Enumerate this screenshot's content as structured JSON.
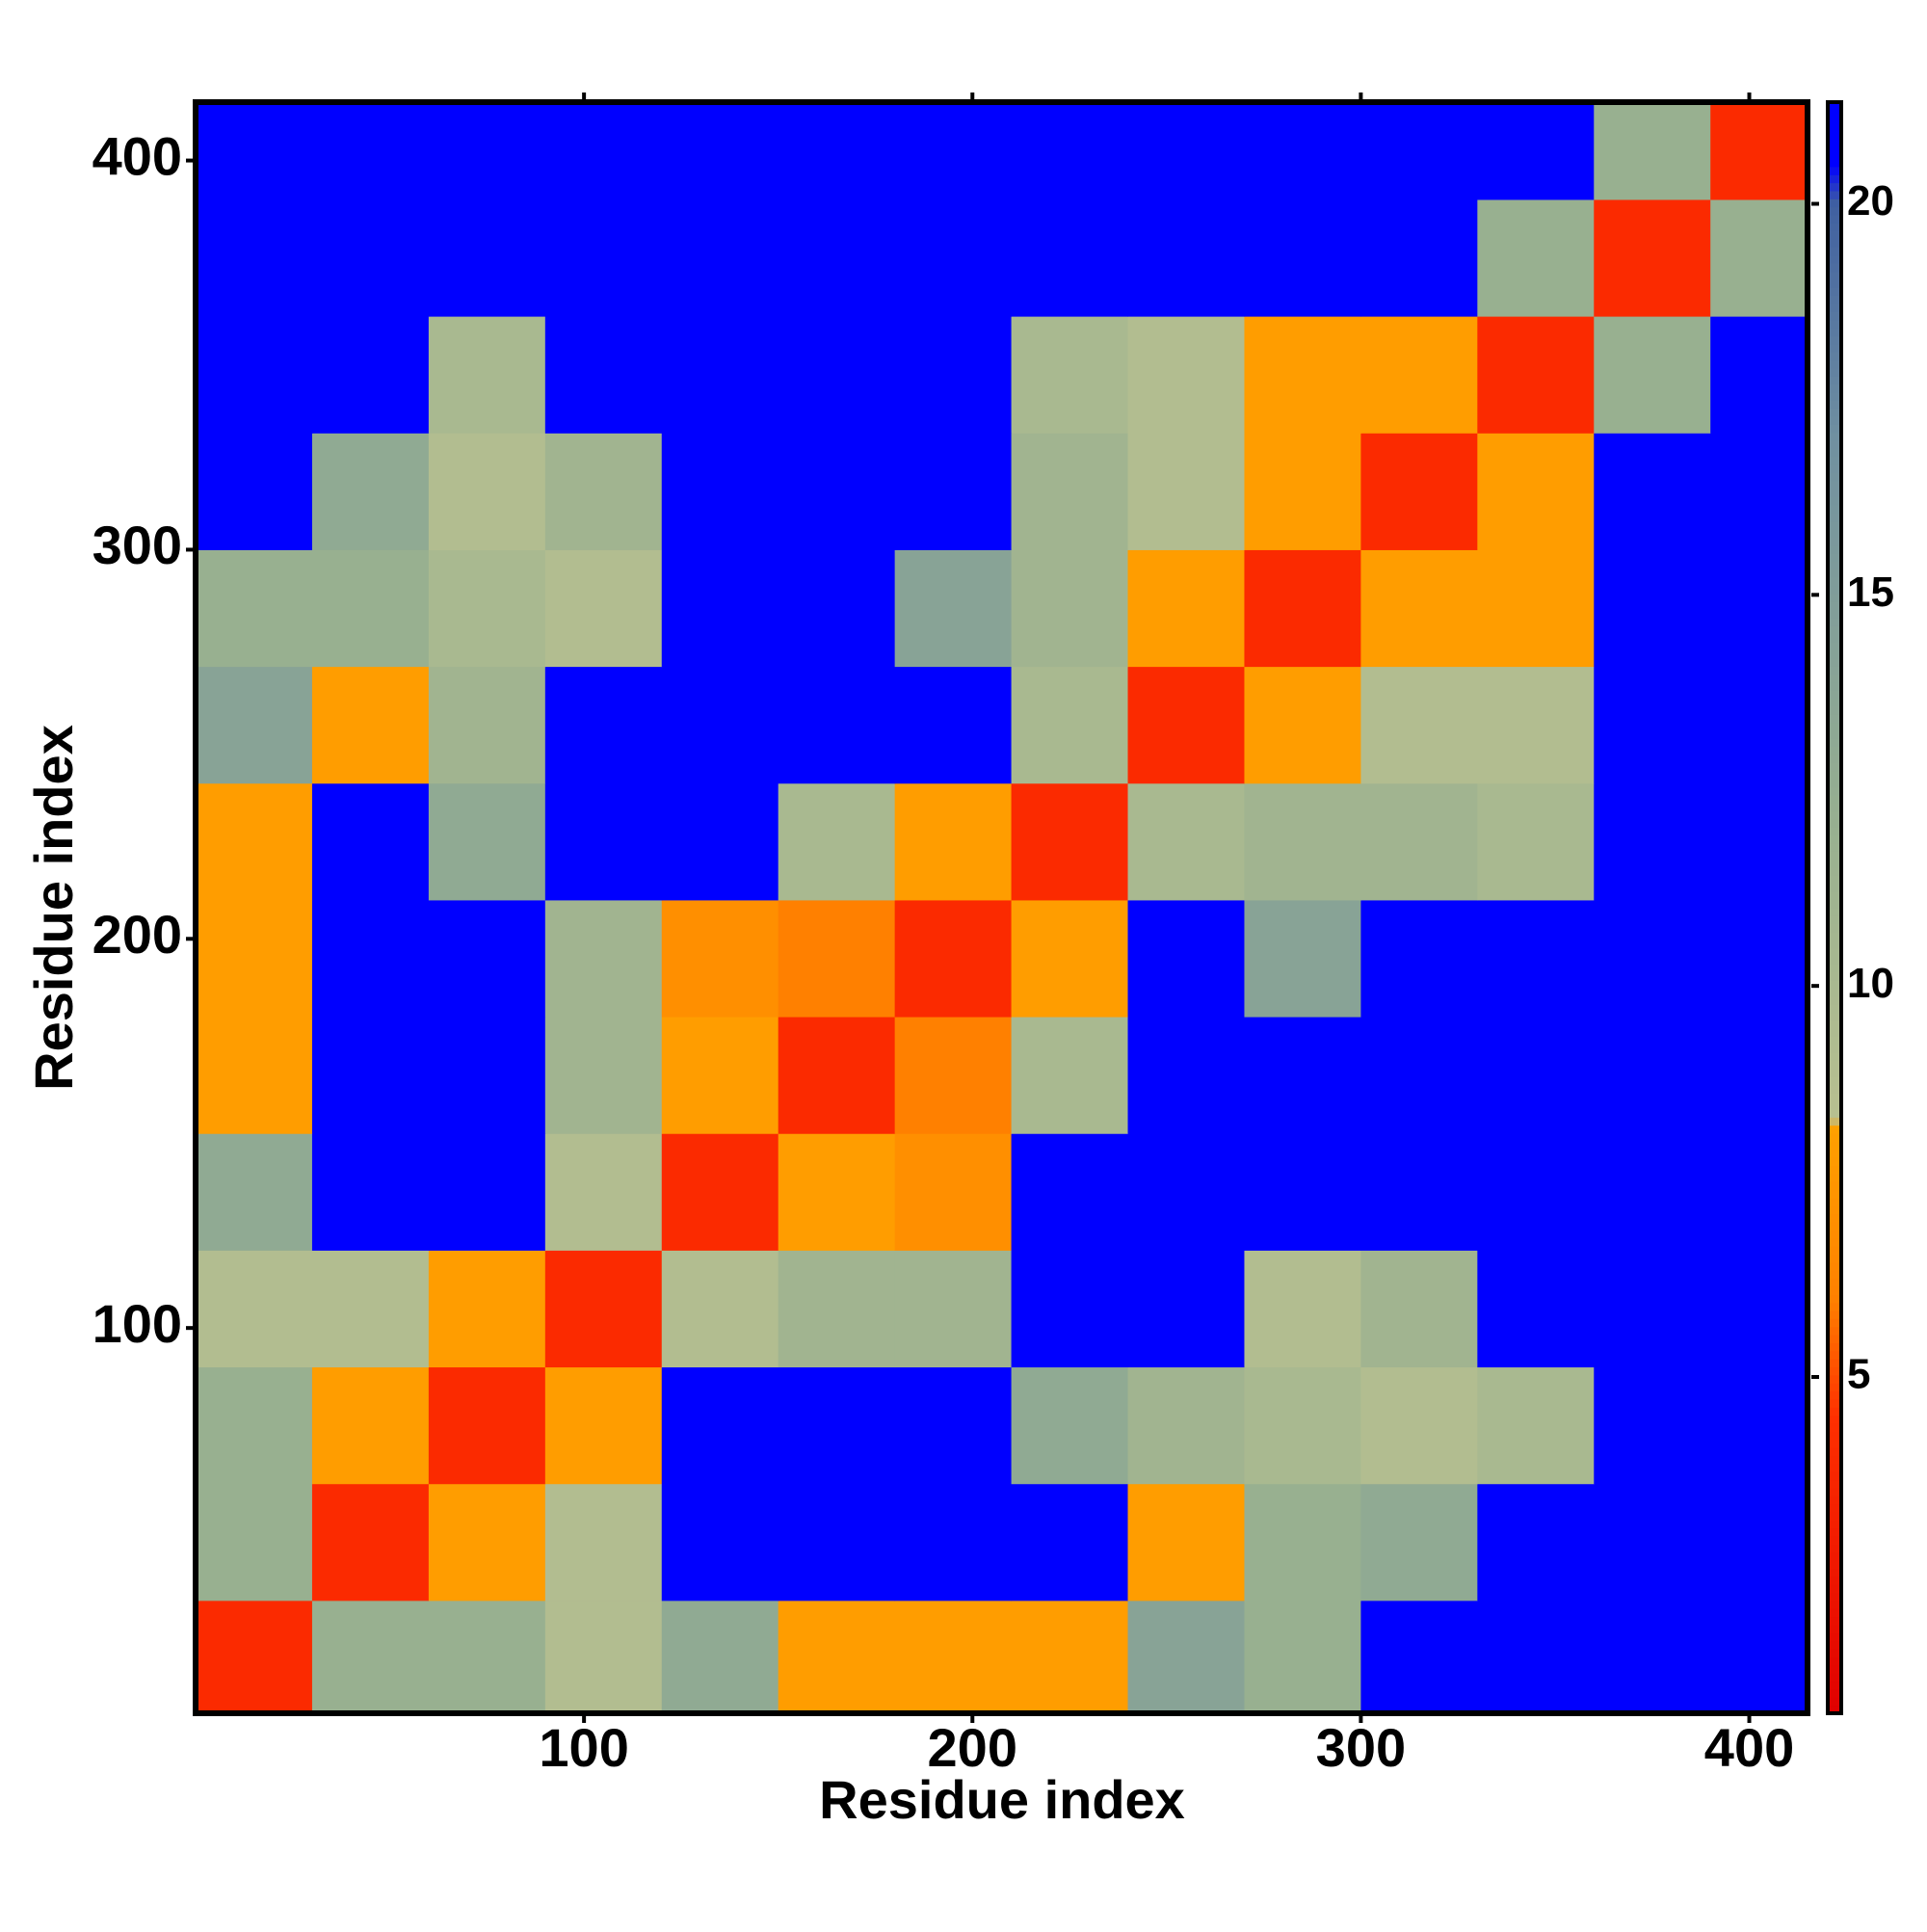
{
  "chart_data": {
    "type": "heatmap",
    "xlabel": "Residue index",
    "ylabel": "Residue index",
    "xlim": [
      0,
      415
    ],
    "ylim": [
      1,
      415
    ],
    "xticks": [
      100,
      200,
      300,
      400
    ],
    "yticks": [
      100,
      200,
      300,
      400
    ],
    "xbins": [
      0,
      30,
      60,
      90,
      120,
      150,
      180,
      210,
      240,
      270,
      300,
      330,
      360,
      390,
      420
    ],
    "ybins": [
      0,
      30,
      60,
      90,
      120,
      150,
      180,
      210,
      240,
      270,
      300,
      330,
      360,
      390,
      420
    ],
    "z": [
      [
        4,
        12,
        12,
        9,
        13,
        8,
        8,
        8,
        14,
        12,
        21,
        21,
        21,
        21
      ],
      [
        12,
        4,
        8,
        9,
        21,
        21,
        21,
        21,
        8,
        12,
        13,
        21,
        21,
        21
      ],
      [
        12,
        8,
        4,
        8,
        21,
        21,
        21,
        13,
        11,
        10,
        9,
        10,
        21,
        21
      ],
      [
        9,
        9,
        8,
        4,
        9,
        11,
        11,
        21,
        21,
        9,
        11,
        21,
        21,
        21
      ],
      [
        13,
        21,
        21,
        9,
        4,
        8,
        7,
        21,
        21,
        21,
        21,
        21,
        21,
        21
      ],
      [
        8,
        21,
        21,
        11,
        8,
        4,
        6,
        10,
        21,
        21,
        21,
        21,
        21,
        21
      ],
      [
        8,
        21,
        21,
        11,
        7,
        6,
        4,
        8,
        21,
        14,
        21,
        21,
        21,
        21
      ],
      [
        8,
        21,
        13,
        21,
        21,
        10,
        8,
        4,
        10,
        11,
        11,
        10,
        21,
        21
      ],
      [
        14,
        8,
        11,
        21,
        21,
        21,
        21,
        10,
        4,
        8,
        9,
        9,
        21,
        21
      ],
      [
        12,
        12,
        10,
        9,
        21,
        21,
        14,
        11,
        8,
        4,
        8,
        8,
        21,
        21
      ],
      [
        21,
        13,
        9,
        11,
        21,
        21,
        21,
        11,
        9,
        8,
        4,
        8,
        21,
        21
      ],
      [
        21,
        21,
        10,
        21,
        21,
        21,
        21,
        10,
        9,
        8,
        8,
        4,
        12,
        21
      ],
      [
        21,
        21,
        21,
        21,
        21,
        21,
        21,
        21,
        21,
        21,
        21,
        12,
        4,
        12
      ],
      [
        21,
        21,
        21,
        21,
        21,
        21,
        21,
        21,
        21,
        21,
        21,
        21,
        12,
        4
      ]
    ],
    "clim": [
      0.7,
      21.3
    ],
    "cticks": [
      5,
      10,
      15,
      20
    ],
    "colorscale": [
      [
        0.7,
        "#e00000"
      ],
      [
        4.5,
        "#ff3000"
      ],
      [
        6,
        "#ff8000"
      ],
      [
        8.2,
        "#ffa000"
      ],
      [
        8.3,
        "#b8c090"
      ],
      [
        12,
        "#98b090"
      ],
      [
        17,
        "#7090a0"
      ],
      [
        20,
        "#4060a0"
      ],
      [
        20.5,
        "#0000ff"
      ],
      [
        21.3,
        "#0000ff"
      ]
    ]
  }
}
